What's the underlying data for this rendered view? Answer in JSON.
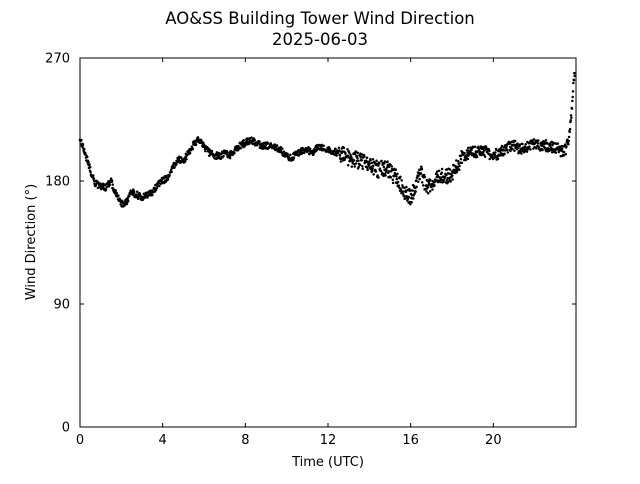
{
  "chart_data": {
    "type": "scatter",
    "title": "AO&SS Building Tower Wind Direction",
    "subtitle": "2025-06-03",
    "xlabel": "Time (UTC)",
    "ylabel": "Wind Direction (°)",
    "xlim": [
      0,
      24
    ],
    "ylim": [
      0,
      270
    ],
    "xticks": [
      0,
      4,
      8,
      12,
      16,
      20
    ],
    "yticks": [
      0,
      90,
      180,
      270
    ],
    "grid": false,
    "marker_color": "#000000",
    "trend": [
      [
        0.0,
        210
      ],
      [
        0.25,
        200
      ],
      [
        0.5,
        188
      ],
      [
        0.75,
        178
      ],
      [
        1.0,
        176
      ],
      [
        1.25,
        175
      ],
      [
        1.5,
        180
      ],
      [
        1.75,
        170
      ],
      [
        2.0,
        163
      ],
      [
        2.25,
        165
      ],
      [
        2.5,
        172
      ],
      [
        2.75,
        170
      ],
      [
        3.0,
        168
      ],
      [
        3.25,
        170
      ],
      [
        3.5,
        171
      ],
      [
        3.75,
        178
      ],
      [
        4.0,
        180
      ],
      [
        4.25,
        183
      ],
      [
        4.5,
        190
      ],
      [
        4.75,
        196
      ],
      [
        5.0,
        195
      ],
      [
        5.25,
        200
      ],
      [
        5.5,
        207
      ],
      [
        5.75,
        210
      ],
      [
        6.0,
        205
      ],
      [
        6.25,
        201
      ],
      [
        6.5,
        199
      ],
      [
        6.75,
        198
      ],
      [
        7.0,
        200
      ],
      [
        7.25,
        199
      ],
      [
        7.5,
        203
      ],
      [
        7.75,
        206
      ],
      [
        8.0,
        208
      ],
      [
        8.25,
        210
      ],
      [
        8.5,
        208
      ],
      [
        8.75,
        206
      ],
      [
        9.0,
        206
      ],
      [
        9.25,
        205
      ],
      [
        9.5,
        204
      ],
      [
        9.75,
        202
      ],
      [
        10.0,
        198
      ],
      [
        10.25,
        197
      ],
      [
        10.5,
        200
      ],
      [
        10.75,
        202
      ],
      [
        11.0,
        203
      ],
      [
        11.25,
        201
      ],
      [
        11.5,
        205
      ],
      [
        11.75,
        204
      ],
      [
        12.0,
        203
      ],
      [
        12.25,
        202
      ],
      [
        12.5,
        200
      ],
      [
        12.75,
        199
      ],
      [
        13.0,
        197
      ],
      [
        13.25,
        196
      ],
      [
        13.5,
        195
      ],
      [
        13.75,
        193
      ],
      [
        14.0,
        192
      ],
      [
        14.25,
        190
      ],
      [
        14.5,
        188
      ],
      [
        14.75,
        190
      ],
      [
        15.0,
        187
      ],
      [
        15.25,
        183
      ],
      [
        15.5,
        178
      ],
      [
        15.75,
        172
      ],
      [
        16.0,
        168
      ],
      [
        16.25,
        178
      ],
      [
        16.5,
        185
      ],
      [
        16.75,
        176
      ],
      [
        17.0,
        178
      ],
      [
        17.25,
        185
      ],
      [
        17.5,
        184
      ],
      [
        17.75,
        183
      ],
      [
        18.0,
        185
      ],
      [
        18.25,
        192
      ],
      [
        18.5,
        197
      ],
      [
        18.75,
        200
      ],
      [
        19.0,
        202
      ],
      [
        19.25,
        201
      ],
      [
        19.5,
        203
      ],
      [
        19.75,
        200
      ],
      [
        20.0,
        200
      ],
      [
        20.25,
        199
      ],
      [
        20.5,
        203
      ],
      [
        20.75,
        205
      ],
      [
        21.0,
        206
      ],
      [
        21.25,
        204
      ],
      [
        21.5,
        203
      ],
      [
        21.75,
        206
      ],
      [
        22.0,
        207
      ],
      [
        22.25,
        206
      ],
      [
        22.5,
        206
      ],
      [
        22.75,
        205
      ],
      [
        23.0,
        205
      ],
      [
        23.25,
        202
      ],
      [
        23.5,
        203
      ],
      [
        23.7,
        215
      ],
      [
        23.85,
        245
      ],
      [
        23.95,
        262
      ]
    ]
  }
}
